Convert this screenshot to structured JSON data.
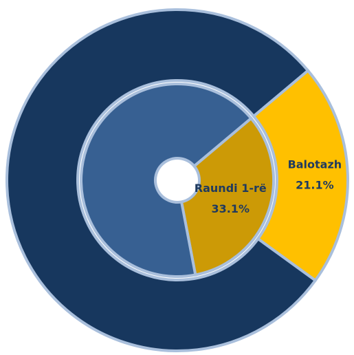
{
  "chart_data": {
    "type": "nested-donut",
    "rings": [
      {
        "categories": [
          "Balotazh",
          null
        ],
        "values": [
          21.1,
          78.9
        ],
        "value_labels": [
          "21.1%",
          null
        ],
        "colors": [
          "#ffc000",
          "#17375e"
        ]
      },
      {
        "categories": [
          "Raundi 1-rë",
          null
        ],
        "values": [
          33.1,
          66.9
        ],
        "value_labels": [
          "33.1%",
          null
        ],
        "colors": [
          "#cc9a06",
          "#376092"
        ]
      }
    ]
  }
}
